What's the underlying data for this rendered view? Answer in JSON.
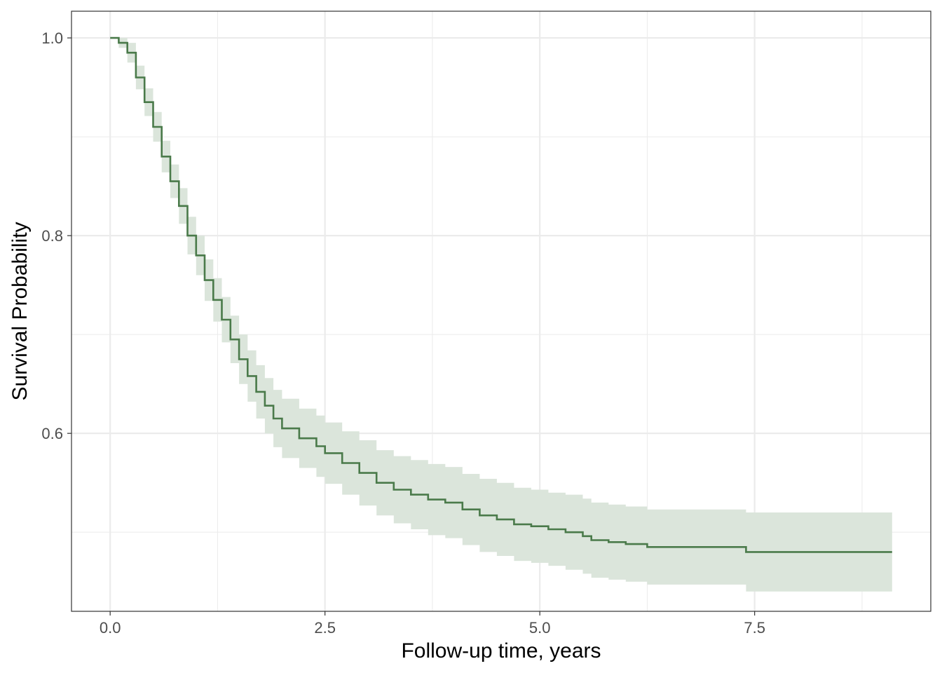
{
  "chart_data": {
    "type": "line",
    "subtype": "kaplan-meier step curve with confidence band",
    "title": "",
    "xlabel": "Follow-up time, years",
    "ylabel": "Survival Probability",
    "xlim": [
      -0.45,
      9.55
    ],
    "ylim": [
      0.42,
      1.027
    ],
    "x_ticks": [
      0,
      2.5,
      5,
      7.5
    ],
    "x_tick_labels": [
      "0.0",
      "2.5",
      "5.0",
      "7.5"
    ],
    "y_ticks": [
      0.6,
      0.8,
      1.0
    ],
    "y_tick_labels": [
      "0.6",
      "0.8",
      "1.0"
    ],
    "grid": true,
    "legend": "none",
    "colors": {
      "line": "#4a7a4a",
      "band": "#dbe5db",
      "grid": "#ebebeb",
      "panel_border": "#333333"
    },
    "series": [
      {
        "x": [
          0,
          0.1,
          0.2,
          0.3,
          0.4,
          0.5,
          0.6,
          0.7,
          0.8,
          0.9,
          1.0,
          1.1,
          1.2,
          1.3,
          1.4,
          1.5,
          1.6,
          1.7,
          1.8,
          1.9,
          2.0,
          2.2,
          2.4,
          2.5,
          2.7,
          2.9,
          3.1,
          3.3,
          3.5,
          3.7,
          3.9,
          4.1,
          4.3,
          4.5,
          4.7,
          4.9,
          5.1,
          5.3,
          5.5,
          5.6,
          5.8,
          6.0,
          6.25,
          7.4,
          9.1
        ],
        "y": [
          1.0,
          0.995,
          0.985,
          0.96,
          0.935,
          0.91,
          0.88,
          0.855,
          0.83,
          0.8,
          0.78,
          0.755,
          0.735,
          0.715,
          0.695,
          0.675,
          0.658,
          0.642,
          0.628,
          0.615,
          0.605,
          0.595,
          0.587,
          0.58,
          0.57,
          0.56,
          0.55,
          0.543,
          0.538,
          0.533,
          0.53,
          0.523,
          0.517,
          0.513,
          0.508,
          0.506,
          0.503,
          0.5,
          0.496,
          0.492,
          0.49,
          0.488,
          0.485,
          0.48,
          0.48
        ],
        "lower": [
          1.0,
          0.99,
          0.975,
          0.948,
          0.921,
          0.895,
          0.864,
          0.838,
          0.812,
          0.781,
          0.76,
          0.734,
          0.713,
          0.692,
          0.671,
          0.65,
          0.632,
          0.615,
          0.6,
          0.586,
          0.575,
          0.565,
          0.556,
          0.549,
          0.538,
          0.527,
          0.517,
          0.509,
          0.503,
          0.497,
          0.494,
          0.487,
          0.48,
          0.476,
          0.471,
          0.469,
          0.466,
          0.462,
          0.458,
          0.454,
          0.452,
          0.45,
          0.447,
          0.44,
          0.44
        ],
        "upper": [
          1.0,
          1.0,
          0.995,
          0.972,
          0.949,
          0.925,
          0.896,
          0.872,
          0.848,
          0.819,
          0.8,
          0.776,
          0.757,
          0.738,
          0.719,
          0.7,
          0.684,
          0.669,
          0.656,
          0.644,
          0.635,
          0.625,
          0.618,
          0.611,
          0.602,
          0.593,
          0.583,
          0.577,
          0.573,
          0.569,
          0.566,
          0.559,
          0.554,
          0.55,
          0.545,
          0.543,
          0.54,
          0.538,
          0.534,
          0.53,
          0.528,
          0.526,
          0.523,
          0.52,
          0.52
        ]
      }
    ]
  }
}
